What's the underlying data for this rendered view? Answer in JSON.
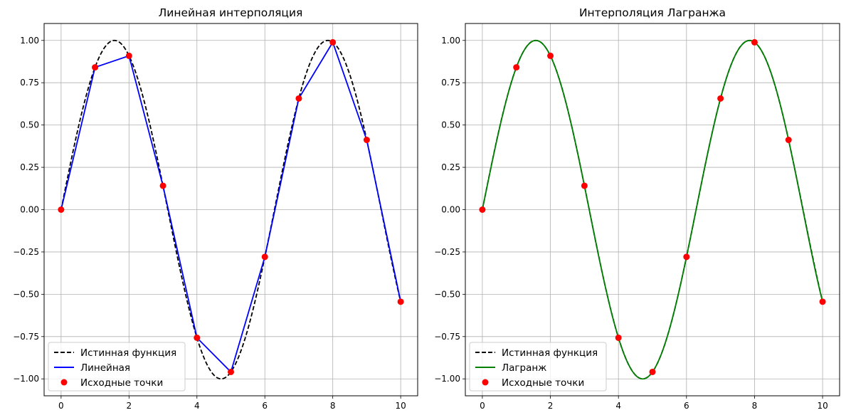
{
  "figure": {
    "axes_count": 2
  },
  "chart_data": [
    {
      "type": "line",
      "title": "Линейная интерполяция",
      "xlabel": "",
      "ylabel": "",
      "xlim": [
        -0.5,
        10.5
      ],
      "ylim": [
        -1.1,
        1.1
      ],
      "xticks": [
        0,
        2,
        4,
        6,
        8,
        10
      ],
      "yticks": [
        -1.0,
        -0.75,
        -0.5,
        -0.25,
        0.0,
        0.25,
        0.5,
        0.75,
        1.0
      ],
      "ytick_labels": [
        "−1.00",
        "−0.75",
        "−0.50",
        "−0.25",
        "0.00",
        "0.25",
        "0.50",
        "0.75",
        "1.00"
      ],
      "xtick_labels": [
        "0",
        "2",
        "4",
        "6",
        "8",
        "10"
      ],
      "grid": true,
      "legend_position": "lower-left",
      "series": [
        {
          "name": "Истинная функция",
          "kind": "function-sin",
          "x_range": [
            0,
            10
          ],
          "color": "#000000",
          "style": "dashed"
        },
        {
          "name": "Линейная",
          "kind": "polyline",
          "x": [
            0,
            1,
            2,
            3,
            4,
            5,
            6,
            7,
            8,
            9,
            10
          ],
          "y": [
            0.0,
            0.841,
            0.909,
            0.141,
            -0.757,
            -0.959,
            -0.279,
            0.657,
            0.989,
            0.412,
            -0.544
          ],
          "color": "#0000ff",
          "style": "solid"
        },
        {
          "name": "Исходные точки",
          "kind": "scatter",
          "x": [
            0,
            1,
            2,
            3,
            4,
            5,
            6,
            7,
            8,
            9,
            10
          ],
          "y": [
            0.0,
            0.841,
            0.909,
            0.141,
            -0.757,
            -0.959,
            -0.279,
            0.657,
            0.989,
            0.412,
            -0.544
          ],
          "color": "#ff0000"
        }
      ]
    },
    {
      "type": "line",
      "title": "Интерполяция Лагранжа",
      "xlabel": "",
      "ylabel": "",
      "xlim": [
        -0.5,
        10.5
      ],
      "ylim": [
        -1.1,
        1.1
      ],
      "xticks": [
        0,
        2,
        4,
        6,
        8,
        10
      ],
      "yticks": [
        -1.0,
        -0.75,
        -0.5,
        -0.25,
        0.0,
        0.25,
        0.5,
        0.75,
        1.0
      ],
      "ytick_labels": [
        "−1.00",
        "−0.75",
        "−0.50",
        "−0.25",
        "0.00",
        "0.25",
        "0.50",
        "0.75",
        "1.00"
      ],
      "xtick_labels": [
        "0",
        "2",
        "4",
        "6",
        "8",
        "10"
      ],
      "grid": true,
      "legend_position": "lower-left",
      "series": [
        {
          "name": "Истинная функция",
          "kind": "function-sin",
          "x_range": [
            0,
            10
          ],
          "color": "#000000",
          "style": "dashed"
        },
        {
          "name": "Лагранж",
          "kind": "function-lagrange",
          "x_range": [
            0,
            10
          ],
          "color": "#008000",
          "style": "solid"
        },
        {
          "name": "Исходные точки",
          "kind": "scatter",
          "x": [
            0,
            1,
            2,
            3,
            4,
            5,
            6,
            7,
            8,
            9,
            10
          ],
          "y": [
            0.0,
            0.841,
            0.909,
            0.141,
            -0.757,
            -0.959,
            -0.279,
            0.657,
            0.989,
            0.412,
            -0.544
          ],
          "color": "#ff0000"
        }
      ]
    }
  ]
}
